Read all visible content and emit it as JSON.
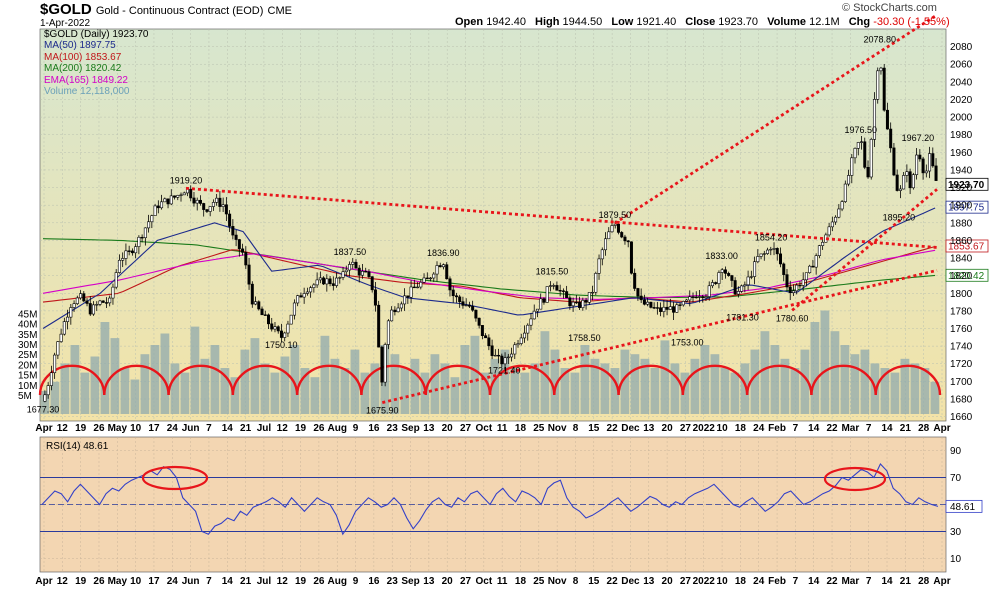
{
  "header": {
    "symbol": "$GOLD",
    "subtitle": "Gold - Continuous Contract (EOD)",
    "exchange": "CME",
    "date": "1-Apr-2022",
    "brand": "© StockCharts.com",
    "open_label": "Open",
    "open": "1942.40",
    "high_label": "High",
    "high": "1944.50",
    "low_label": "Low",
    "low": "1921.40",
    "close_label": "Close",
    "close": "1923.70",
    "volume_label": "Volume",
    "volume": "12.1M",
    "chg_label": "Chg",
    "chg": "-30.30 (-1.55%)"
  },
  "legend": [
    {
      "text": "$GOLD (Daily) 1923.70",
      "color": "#000000"
    },
    {
      "text": "MA(50) 1897.75",
      "color": "#1c2a8c"
    },
    {
      "text": "MA(100) 1853.67",
      "color": "#c0161a"
    },
    {
      "text": "MA(200) 1820.42",
      "color": "#1a7a1a"
    },
    {
      "text": "EMA(165) 1849.22",
      "color": "#d400c8"
    },
    {
      "text": "Volume 12,118,000",
      "color": "#6aa0b8"
    }
  ],
  "colors": {
    "price_bg_top": "#d7e6cf",
    "price_bg_bottom": "#f3e3a8",
    "rsi_bg": "#f3d6b2",
    "candles": "#000000",
    "volume": "#8fa9ae",
    "trend": "#e8151b",
    "ma50": "#1c2a8c",
    "ma100": "#c0161a",
    "ma200": "#1a7a1a",
    "ema165": "#d400c8",
    "rsi_line": "#3340c8"
  },
  "chart_data": [
    {
      "type": "line",
      "panel": "price",
      "series_name": "$GOLD (Daily)",
      "y_ticks": [
        1660,
        1680,
        1700,
        1720,
        1740,
        1760,
        1780,
        1800,
        1820,
        1840,
        1860,
        1880,
        1900,
        1920,
        1940,
        1960,
        1980,
        2000,
        2020,
        2040,
        2060,
        2080
      ],
      "ylim": [
        1655,
        2100
      ],
      "volume_ticks": [
        "5M",
        "10M",
        "15M",
        "20M",
        "25M",
        "30M",
        "35M",
        "40M",
        "45M"
      ],
      "x_ticks": [
        "Apr",
        "12",
        "19",
        "26",
        "May",
        "10",
        "17",
        "24",
        "Jun",
        "7",
        "14",
        "21",
        "Jul",
        "12",
        "19",
        "26",
        "Aug",
        "9",
        "16",
        "23",
        "Sep",
        "13",
        "20",
        "27",
        "Oct",
        "11",
        "18",
        "25",
        "Nov",
        "8",
        "15",
        "22",
        "Dec",
        "13",
        "20",
        "27",
        "2022",
        "10",
        "18",
        "24",
        "Feb",
        "7",
        "14",
        "22",
        "Mar",
        "7",
        "14",
        "21",
        "28",
        "Apr"
      ],
      "price_path": [
        [
          0,
          1677.3
        ],
        [
          6,
          1700
        ],
        [
          12,
          1730
        ],
        [
          20,
          1760
        ],
        [
          30,
          1790
        ],
        [
          40,
          1795
        ],
        [
          50,
          1780
        ],
        [
          60,
          1790
        ],
        [
          70,
          1790
        ],
        [
          80,
          1840
        ],
        [
          90,
          1845
        ],
        [
          100,
          1860
        ],
        [
          110,
          1880
        ],
        [
          120,
          1900
        ],
        [
          130,
          1905
        ],
        [
          140,
          1910
        ],
        [
          150,
          1919.2
        ],
        [
          160,
          1905
        ],
        [
          170,
          1895
        ],
        [
          180,
          1905
        ],
        [
          190,
          1900
        ],
        [
          200,
          1860
        ],
        [
          210,
          1845
        ],
        [
          220,
          1790
        ],
        [
          230,
          1775
        ],
        [
          240,
          1762
        ],
        [
          250,
          1750.1
        ],
        [
          258,
          1770
        ],
        [
          265,
          1790
        ],
        [
          275,
          1805
        ],
        [
          285,
          1810
        ],
        [
          295,
          1815
        ],
        [
          305,
          1812
        ],
        [
          315,
          1820
        ],
        [
          322,
          1837.5
        ],
        [
          330,
          1825
        ],
        [
          340,
          1820
        ],
        [
          348,
          1800
        ],
        [
          352,
          1740
        ],
        [
          356,
          1695
        ],
        [
          360,
          1760
        ],
        [
          366,
          1780
        ],
        [
          374,
          1790
        ],
        [
          384,
          1800
        ],
        [
          394,
          1810
        ],
        [
          404,
          1815
        ],
        [
          412,
          1830
        ],
        [
          420,
          1836.9
        ],
        [
          428,
          1800
        ],
        [
          438,
          1790
        ],
        [
          448,
          1785
        ],
        [
          458,
          1760
        ],
        [
          468,
          1740
        ],
        [
          476,
          1725
        ],
        [
          484,
          1721.4
        ],
        [
          492,
          1735
        ],
        [
          500,
          1750
        ],
        [
          508,
          1765
        ],
        [
          516,
          1782
        ],
        [
          526,
          1795
        ],
        [
          534,
          1815.5
        ],
        [
          544,
          1800
        ],
        [
          552,
          1790
        ],
        [
          560,
          1785
        ],
        [
          568,
          1790
        ],
        [
          576,
          1800
        ],
        [
          584,
          1840
        ],
        [
          592,
          1865
        ],
        [
          600,
          1879.5
        ],
        [
          608,
          1865
        ],
        [
          614,
          1860
        ],
        [
          618,
          1820
        ],
        [
          626,
          1790
        ],
        [
          636,
          1785
        ],
        [
          646,
          1780
        ],
        [
          656,
          1783
        ],
        [
          666,
          1782
        ],
        [
          676,
          1790
        ],
        [
          686,
          1800
        ],
        [
          696,
          1800
        ],
        [
          706,
          1815
        ],
        [
          712,
          1833
        ],
        [
          720,
          1815
        ],
        [
          728,
          1800
        ],
        [
          734,
          1805
        ],
        [
          742,
          1820
        ],
        [
          750,
          1840
        ],
        [
          758,
          1845
        ],
        [
          764,
          1854.2
        ],
        [
          772,
          1840
        ],
        [
          780,
          1810
        ],
        [
          786,
          1802
        ],
        [
          794,
          1812
        ],
        [
          802,
          1820
        ],
        [
          810,
          1840
        ],
        [
          818,
          1860
        ],
        [
          826,
          1875
        ],
        [
          834,
          1895
        ],
        [
          842,
          1920
        ],
        [
          850,
          1955
        ],
        [
          858,
          1976.5
        ],
        [
          862,
          1945
        ],
        [
          866,
          1935
        ],
        [
          870,
          1990
        ],
        [
          874,
          2040
        ],
        [
          878,
          2078.8
        ],
        [
          882,
          2010
        ],
        [
          886,
          1985
        ],
        [
          890,
          1960
        ],
        [
          894,
          1930
        ],
        [
          898,
          1910
        ],
        [
          902,
          1925
        ],
        [
          906,
          1945
        ],
        [
          910,
          1915
        ],
        [
          914,
          1940
        ],
        [
          918,
          1967.2
        ],
        [
          922,
          1945
        ],
        [
          926,
          1935
        ],
        [
          930,
          1955
        ],
        [
          934,
          1940
        ],
        [
          938,
          1923.7
        ]
      ],
      "annotations": [
        {
          "text": "1677.30",
          "x": 0,
          "y": 1677.3,
          "pos": "below"
        },
        {
          "text": "1919.20",
          "x": 150,
          "y": 1919.2,
          "pos": "above"
        },
        {
          "text": "1750.10",
          "x": 250,
          "y": 1750.1,
          "pos": "below"
        },
        {
          "text": "1837.50",
          "x": 322,
          "y": 1837.5,
          "pos": "above"
        },
        {
          "text": "1675.90",
          "x": 356,
          "y": 1675.9,
          "pos": "below"
        },
        {
          "text": "1836.90",
          "x": 420,
          "y": 1836.9,
          "pos": "above"
        },
        {
          "text": "1721.40",
          "x": 484,
          "y": 1721.4,
          "pos": "below"
        },
        {
          "text": "1815.50",
          "x": 534,
          "y": 1815.5,
          "pos": "above"
        },
        {
          "text": "1758.50",
          "x": 568,
          "y": 1758.5,
          "pos": "below"
        },
        {
          "text": "1879.50",
          "x": 600,
          "y": 1879.5,
          "pos": "above"
        },
        {
          "text": "1753.00",
          "x": 676,
          "y": 1753.0,
          "pos": "below"
        },
        {
          "text": "1833.00",
          "x": 712,
          "y": 1833.0,
          "pos": "above"
        },
        {
          "text": "1781.30",
          "x": 734,
          "y": 1781.3,
          "pos": "below"
        },
        {
          "text": "1854.20",
          "x": 764,
          "y": 1854.2,
          "pos": "above"
        },
        {
          "text": "1780.60",
          "x": 786,
          "y": 1780.6,
          "pos": "below"
        },
        {
          "text": "1976.50",
          "x": 858,
          "y": 1976.5,
          "pos": "above"
        },
        {
          "text": "2078.80",
          "x": 878,
          "y": 2078.8,
          "pos": "above"
        },
        {
          "text": "1895.20",
          "x": 898,
          "y": 1895.2,
          "pos": "below"
        },
        {
          "text": "1967.20",
          "x": 918,
          "y": 1967.2,
          "pos": "above"
        }
      ],
      "right_tags": [
        {
          "text": "1923.70",
          "y": 1923.7,
          "color": "#000000"
        },
        {
          "text": "1897.75",
          "y": 1897.75,
          "color": "#1c2a8c"
        },
        {
          "text": "1853.67",
          "y": 1853.67,
          "color": "#c0161a"
        },
        {
          "text": "1820.42",
          "y": 1820.42,
          "color": "#1a7a1a"
        }
      ],
      "ma50_path": [
        [
          0,
          1760
        ],
        [
          60,
          1800
        ],
        [
          120,
          1860
        ],
        [
          180,
          1880
        ],
        [
          210,
          1870
        ],
        [
          240,
          1825
        ],
        [
          290,
          1832
        ],
        [
          340,
          1810
        ],
        [
          380,
          1795
        ],
        [
          440,
          1788
        ],
        [
          500,
          1775
        ],
        [
          560,
          1785
        ],
        [
          620,
          1795
        ],
        [
          680,
          1788
        ],
        [
          740,
          1810
        ],
        [
          790,
          1800
        ],
        [
          840,
          1840
        ],
        [
          880,
          1870
        ],
        [
          938,
          1897.75
        ]
      ],
      "ma100_path": [
        [
          0,
          1790
        ],
        [
          80,
          1800
        ],
        [
          140,
          1830
        ],
        [
          200,
          1850
        ],
        [
          260,
          1835
        ],
        [
          320,
          1820
        ],
        [
          380,
          1812
        ],
        [
          440,
          1808
        ],
        [
          500,
          1795
        ],
        [
          560,
          1790
        ],
        [
          620,
          1795
        ],
        [
          680,
          1790
        ],
        [
          740,
          1800
        ],
        [
          800,
          1812
        ],
        [
          860,
          1830
        ],
        [
          938,
          1853.67
        ]
      ],
      "ma200_path": [
        [
          0,
          1862
        ],
        [
          80,
          1860
        ],
        [
          160,
          1855
        ],
        [
          240,
          1842
        ],
        [
          320,
          1828
        ],
        [
          400,
          1815
        ],
        [
          480,
          1805
        ],
        [
          560,
          1798
        ],
        [
          640,
          1795
        ],
        [
          720,
          1796
        ],
        [
          800,
          1805
        ],
        [
          880,
          1815
        ],
        [
          938,
          1820.42
        ]
      ],
      "ema165_path": [
        [
          0,
          1800
        ],
        [
          80,
          1815
        ],
        [
          160,
          1835
        ],
        [
          220,
          1845
        ],
        [
          280,
          1835
        ],
        [
          340,
          1825
        ],
        [
          400,
          1812
        ],
        [
          460,
          1803
        ],
        [
          520,
          1795
        ],
        [
          580,
          1793
        ],
        [
          640,
          1795
        ],
        [
          700,
          1798
        ],
        [
          760,
          1806
        ],
        [
          820,
          1820
        ],
        [
          880,
          1838
        ],
        [
          938,
          1849.22
        ]
      ],
      "trendlines": [
        [
          [
            150,
            1919.2
          ],
          [
            938,
            1852
          ]
        ],
        [
          [
            356,
            1675.9
          ],
          [
            938,
            1826
          ]
        ],
        [
          [
            600,
            1879.5
          ],
          [
            938,
            2116
          ]
        ],
        [
          [
            786,
            1780.6
          ],
          [
            938,
            1918
          ]
        ]
      ],
      "volume_values": [
        10,
        14,
        22,
        30,
        18,
        25,
        40,
        33,
        20,
        15,
        26,
        30,
        35,
        22,
        18,
        38,
        24,
        30,
        20,
        16,
        28,
        33,
        22,
        18,
        25,
        30,
        20,
        16,
        34,
        24,
        20,
        28,
        18,
        22,
        30,
        26,
        20,
        24,
        18,
        26,
        22,
        16,
        30,
        34,
        18,
        24,
        28,
        20,
        18,
        22,
        36,
        28,
        20,
        18,
        30,
        24,
        22,
        20,
        28,
        26,
        24,
        20,
        32,
        22,
        18,
        24,
        30,
        26,
        20,
        18,
        22,
        28,
        36,
        30,
        24,
        20,
        28,
        40,
        45,
        36,
        30,
        26,
        28,
        22,
        20,
        18,
        24,
        22,
        20,
        14
      ]
    },
    {
      "type": "line",
      "panel": "rsi",
      "title": "RSI(14) 48.61",
      "y_ticks": [
        10,
        30,
        50,
        70,
        90
      ],
      "ylim": [
        0,
        100
      ],
      "current_tag": "48.61",
      "values": [
        50,
        55,
        60,
        58,
        52,
        60,
        65,
        60,
        55,
        50,
        58,
        62,
        60,
        65,
        68,
        70,
        72,
        75,
        72,
        78,
        76,
        70,
        55,
        50,
        45,
        30,
        28,
        34,
        36,
        40,
        38,
        45,
        42,
        48,
        50,
        52,
        55,
        52,
        48,
        55,
        50,
        45,
        50,
        55,
        52,
        50,
        42,
        28,
        35,
        45,
        50,
        55,
        52,
        48,
        50,
        55,
        50,
        40,
        32,
        38,
        46,
        52,
        55,
        50,
        48,
        55,
        52,
        58,
        60,
        55,
        50,
        58,
        62,
        56,
        52,
        60,
        58,
        55,
        50,
        62,
        66,
        68,
        55,
        48,
        45,
        40,
        42,
        45,
        48,
        52,
        55,
        50,
        45,
        48,
        52,
        56,
        54,
        50,
        48,
        52,
        50,
        55,
        58,
        60,
        62,
        65,
        60,
        55,
        50,
        48,
        52,
        55,
        50,
        45,
        48,
        52,
        58,
        60,
        55,
        50,
        52,
        55,
        58,
        60,
        64,
        70,
        68,
        72,
        76,
        74,
        70,
        80,
        75,
        62,
        58,
        52,
        50,
        55,
        52,
        50,
        48.61
      ]
    }
  ]
}
